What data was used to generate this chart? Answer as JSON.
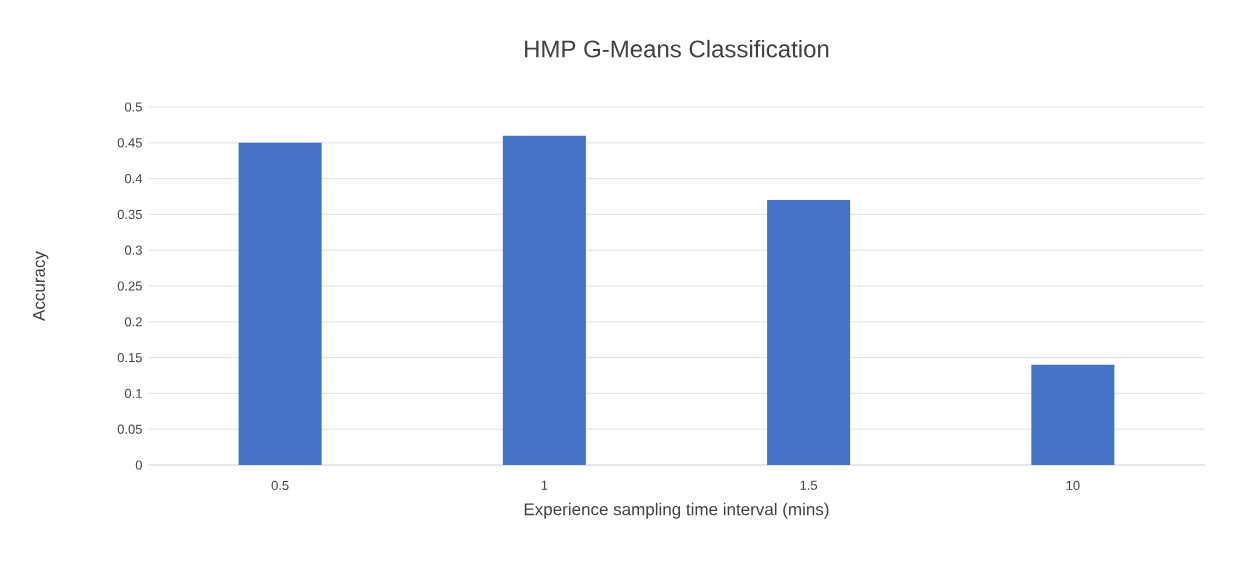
{
  "chart_data": {
    "type": "bar",
    "title": "HMP G-Means Classification",
    "xlabel": "Experience sampling time interval (mins)",
    "ylabel": "Accuracy",
    "categories": [
      "0.5",
      "1",
      "1.5",
      "10"
    ],
    "values": [
      0.45,
      0.46,
      0.37,
      0.14
    ],
    "color": "#4472c4",
    "ylim": [
      0,
      0.5
    ],
    "yticks": [
      0,
      0.05,
      0.1,
      0.15,
      0.2,
      0.25,
      0.3,
      0.35,
      0.4,
      0.45,
      0.5
    ],
    "grid": "y"
  }
}
